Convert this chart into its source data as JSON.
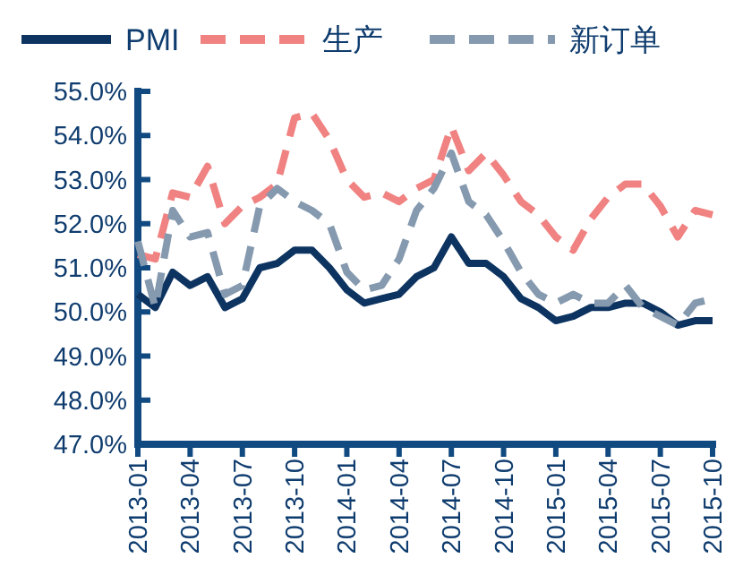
{
  "chart_data": {
    "type": "line",
    "x": [
      "2013-01",
      "2013-02",
      "2013-03",
      "2013-04",
      "2013-05",
      "2013-06",
      "2013-07",
      "2013-08",
      "2013-09",
      "2013-10",
      "2013-11",
      "2013-12",
      "2014-01",
      "2014-02",
      "2014-03",
      "2014-04",
      "2014-05",
      "2014-06",
      "2014-07",
      "2014-08",
      "2014-09",
      "2014-10",
      "2014-11",
      "2014-12",
      "2015-01",
      "2015-02",
      "2015-03",
      "2015-04",
      "2015-05",
      "2015-06",
      "2015-07",
      "2015-08",
      "2015-09",
      "2015-10"
    ],
    "series": [
      {
        "name": "PMI",
        "color": "#0d3461",
        "line_style": "solid",
        "values": [
          50.4,
          50.1,
          50.9,
          50.6,
          50.8,
          50.1,
          50.3,
          51.0,
          51.1,
          51.4,
          51.4,
          51.0,
          50.5,
          50.2,
          50.3,
          50.4,
          50.8,
          51.0,
          51.7,
          51.1,
          51.1,
          50.8,
          50.3,
          50.1,
          49.8,
          49.9,
          50.1,
          50.1,
          50.2,
          50.2,
          50.0,
          49.7,
          49.8,
          49.8
        ]
      },
      {
        "name": "生产",
        "color": "#f08282",
        "line_style": "dashed",
        "values": [
          51.3,
          51.2,
          52.7,
          52.6,
          53.3,
          52.0,
          52.4,
          52.6,
          52.9,
          54.4,
          54.5,
          53.9,
          53.0,
          52.6,
          52.7,
          52.5,
          52.8,
          53.0,
          54.2,
          53.2,
          53.6,
          53.1,
          52.5,
          52.2,
          51.7,
          51.4,
          52.1,
          52.6,
          52.9,
          52.9,
          52.4,
          51.7,
          52.3,
          52.2
        ]
      },
      {
        "name": "新订单",
        "color": "#8599af",
        "line_style": "dashed",
        "values": [
          51.6,
          50.1,
          52.3,
          51.7,
          51.8,
          50.4,
          50.6,
          52.4,
          52.8,
          52.5,
          52.3,
          52.0,
          50.9,
          50.5,
          50.6,
          51.2,
          52.3,
          52.8,
          53.6,
          52.5,
          52.2,
          51.6,
          50.9,
          50.4,
          50.2,
          50.4,
          50.2,
          50.2,
          50.6,
          50.1,
          49.9,
          49.7,
          50.2,
          50.3
        ]
      }
    ],
    "xlim": [
      "2013-01",
      "2015-10"
    ],
    "xticks": [
      "2013-01",
      "2013-04",
      "2013-07",
      "2013-10",
      "2014-01",
      "2014-04",
      "2014-07",
      "2014-10",
      "2015-01",
      "2015-04",
      "2015-07",
      "2015-10"
    ],
    "ylim": [
      47,
      55
    ],
    "yticks": [
      {
        "value": 47,
        "label": "47.0%"
      },
      {
        "value": 48,
        "label": "48.0%"
      },
      {
        "value": 49,
        "label": "49.0%"
      },
      {
        "value": 50,
        "label": "50.0%"
      },
      {
        "value": 51,
        "label": "51.0%"
      },
      {
        "value": 52,
        "label": "52.0%"
      },
      {
        "value": 53,
        "label": "53.0%"
      },
      {
        "value": 54,
        "label": "54.0%"
      },
      {
        "value": 55,
        "label": "55.0%"
      }
    ],
    "grid": false,
    "legend": "top"
  }
}
